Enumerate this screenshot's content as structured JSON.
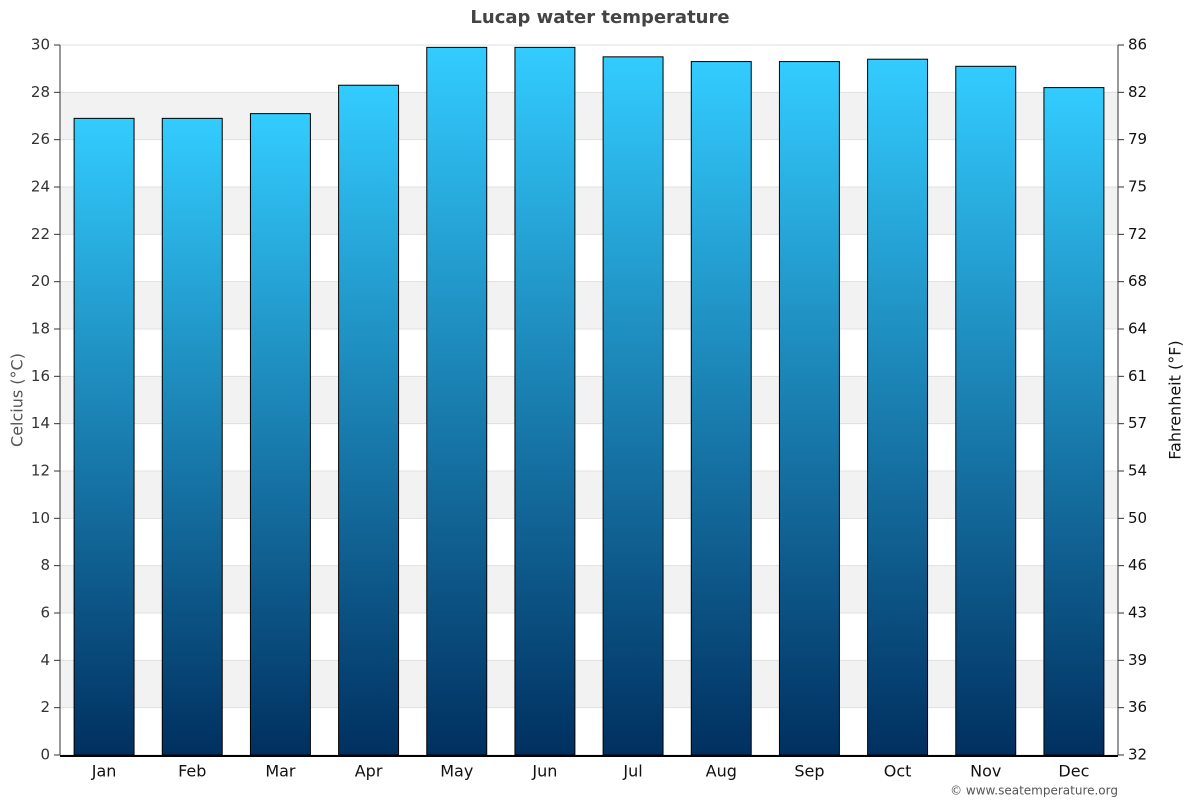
{
  "chart_data": {
    "type": "bar",
    "title": "Lucap water temperature",
    "y_label": "Celcius (°C)",
    "y2_label": "Fahrenheit (°F)",
    "credit": "© www.seatemperature.org",
    "categories": [
      "Jan",
      "Feb",
      "Mar",
      "Apr",
      "May",
      "Jun",
      "Jul",
      "Aug",
      "Sep",
      "Oct",
      "Nov",
      "Dec"
    ],
    "values": [
      26.9,
      26.9,
      27.1,
      28.3,
      29.9,
      29.9,
      29.5,
      29.3,
      29.3,
      29.4,
      29.1,
      28.2
    ],
    "color": [
      "#33ccff",
      "#003060"
    ],
    "ylim": [
      0,
      30
    ],
    "yticks": [
      0,
      2,
      4,
      6,
      8,
      10,
      12,
      14,
      16,
      18,
      20,
      22,
      24,
      26,
      28,
      30
    ],
    "y2lim": [
      32,
      86
    ],
    "y2ticks": [
      32,
      {
        "value": 35.6,
        "label": "36"
      },
      {
        "value": 39.2,
        "label": "39"
      },
      {
        "value": 42.8,
        "label": "43"
      },
      {
        "value": 46.4,
        "label": "46"
      },
      50,
      {
        "value": 53.6,
        "label": "54"
      },
      {
        "value": 57.2,
        "label": "57"
      },
      {
        "value": 60.8,
        "label": "61"
      },
      {
        "value": 64.4,
        "label": "64"
      },
      68,
      {
        "value": 71.6,
        "label": "72"
      },
      {
        "value": 75.2,
        "label": "75"
      },
      {
        "value": 78.8,
        "label": "79"
      },
      {
        "value": 82.4,
        "label": "82"
      },
      86
    ],
    "grid": true
  }
}
